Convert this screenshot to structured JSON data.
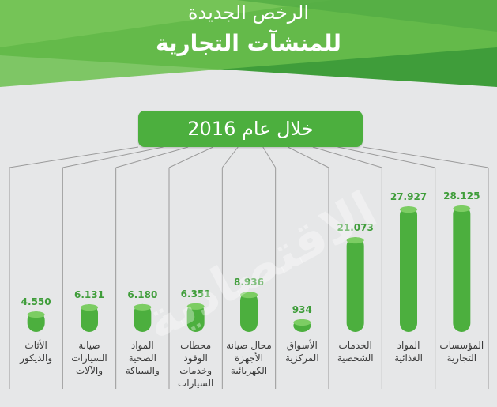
{
  "header": {
    "title_line1": "الرخص الجديدة",
    "title_line2": "للمنشآت التجارية"
  },
  "subtitle": "خلال عام 2016",
  "watermark": "الاقتصادية",
  "colors": {
    "green": "#4caf3e",
    "banner_light": "#6bbf4e",
    "banner_dark": "#3f9d3a",
    "value_text": "#3f9d3a",
    "background": "#e6e7e8"
  },
  "chart_data": {
    "type": "bar",
    "categories": [
      "المؤسسات التجارية",
      "المواد الغذائية",
      "الخدمات الشخصية",
      "الأسواق المركزية",
      "محال صيانة الأجهزة الكهربائية",
      "محطات الوقود وخدمات السيارات",
      "المواد الصحية والسباكة",
      "صيانة السيارات والآلات",
      "الأثاث والديكور"
    ],
    "category_lines": [
      [
        "المؤسسات",
        "التجارية"
      ],
      [
        "المواد",
        "الغذائية"
      ],
      [
        "الخدمات",
        "الشخصية"
      ],
      [
        "الأسواق",
        "المركزية"
      ],
      [
        "محال صيانة",
        "الأجهزة",
        "الكهربائية"
      ],
      [
        "محطات",
        "الوقود",
        "وخدمات",
        "السيارات"
      ],
      [
        "المواد",
        "الصحية",
        "والسباكة"
      ],
      [
        "صيانة",
        "السيارات",
        "والآلات"
      ],
      [
        "الأثاث",
        "والديكور"
      ]
    ],
    "values": [
      28125,
      27927,
      21073,
      934,
      8936,
      6351,
      6180,
      6131,
      4550
    ],
    "labels": [
      "28.125",
      "27.927",
      "21.073",
      "934",
      "8.936",
      "6.351",
      "6.180",
      "6.131",
      "4.550"
    ],
    "direction": "rtl"
  }
}
